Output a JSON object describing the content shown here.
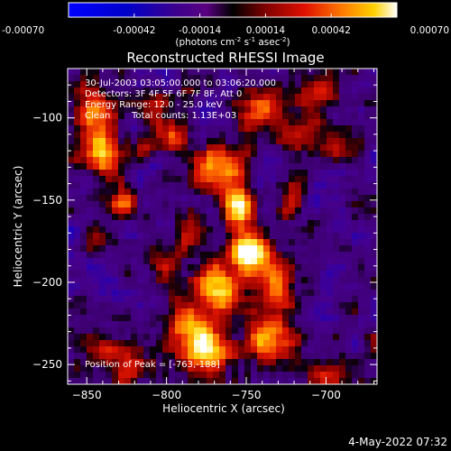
{
  "colorbar": {
    "tick_labels": [
      "-0.00070",
      "-0.00042",
      "-0.00014",
      "0.00014",
      "0.00042",
      "0.00070"
    ],
    "range": [
      -0.0007,
      0.0007
    ],
    "units_main": "(photons cm",
    "units_exp1": "-2",
    "units_mid1": " s",
    "units_exp2": "-1",
    "units_mid2": " asec",
    "units_exp3": "-2",
    "units_end": ")"
  },
  "chart_data": {
    "type": "heatmap",
    "title": "Reconstructed RHESSI Image",
    "xlabel": "Heliocentric X (arcsec)",
    "ylabel": "Heliocentric Y (arcsec)",
    "xlim": [
      -862,
      -668
    ],
    "ylim": [
      -262,
      -70
    ],
    "x_ticks": [
      -850,
      -800,
      -750,
      -700
    ],
    "y_ticks": [
      -100,
      -150,
      -200,
      -250
    ],
    "peak": [
      -763,
      -188
    ],
    "annotations": {
      "time_range": "30-Jul-2003 03:05:00.000 to 03:06:20.000",
      "detectors": "Detectors: 3F 4F 5F 6F 7F 8F, Att 0",
      "energy": "Energy Range: 12.0 - 25.0 keV",
      "clean": "Clean",
      "counts": "Total counts: 1.13E+03",
      "peak_label": "Position of Peak = [-763,-188]"
    },
    "sources": [
      {
        "x": -757,
        "y": -155,
        "amp": 0.95,
        "sx": 7,
        "sy": 9
      },
      {
        "x": -747,
        "y": -183,
        "amp": 0.98,
        "sx": 8,
        "sy": 9
      },
      {
        "x": -768,
        "y": -205,
        "amp": 0.75,
        "sx": 10,
        "sy": 12
      },
      {
        "x": -775,
        "y": -240,
        "amp": 0.82,
        "sx": 11,
        "sy": 9
      },
      {
        "x": -735,
        "y": -235,
        "amp": 0.72,
        "sx": 10,
        "sy": 12
      },
      {
        "x": -730,
        "y": -200,
        "amp": 0.55,
        "sx": 8,
        "sy": 10
      },
      {
        "x": -790,
        "y": -225,
        "amp": 0.55,
        "sx": 8,
        "sy": 10
      },
      {
        "x": -820,
        "y": -250,
        "amp": 0.45,
        "sx": 10,
        "sy": 8
      },
      {
        "x": -840,
        "y": -240,
        "amp": 0.38,
        "sx": 8,
        "sy": 8
      },
      {
        "x": -845,
        "y": -100,
        "amp": 0.55,
        "sx": 10,
        "sy": 14
      },
      {
        "x": -840,
        "y": -125,
        "amp": 0.45,
        "sx": 10,
        "sy": 10
      },
      {
        "x": -800,
        "y": -110,
        "amp": 0.42,
        "sx": 10,
        "sy": 8
      },
      {
        "x": -800,
        "y": -90,
        "amp": 0.35,
        "sx": 10,
        "sy": 7
      },
      {
        "x": -775,
        "y": -130,
        "amp": 0.5,
        "sx": 9,
        "sy": 8
      },
      {
        "x": -760,
        "y": -130,
        "amp": 0.4,
        "sx": 10,
        "sy": 8
      },
      {
        "x": -740,
        "y": -95,
        "amp": 0.45,
        "sx": 10,
        "sy": 8
      },
      {
        "x": -720,
        "y": -110,
        "amp": 0.42,
        "sx": 10,
        "sy": 8
      },
      {
        "x": -705,
        "y": -85,
        "amp": 0.4,
        "sx": 10,
        "sy": 8
      },
      {
        "x": -690,
        "y": -120,
        "amp": 0.35,
        "sx": 8,
        "sy": 8
      },
      {
        "x": -826,
        "y": -153,
        "amp": 0.55,
        "sx": 7,
        "sy": 6
      },
      {
        "x": -843,
        "y": -175,
        "amp": 0.3,
        "sx": 7,
        "sy": 7
      },
      {
        "x": -790,
        "y": -170,
        "amp": 0.3,
        "sx": 8,
        "sy": 8
      },
      {
        "x": -722,
        "y": -150,
        "amp": 0.32,
        "sx": 6,
        "sy": 8
      },
      {
        "x": -800,
        "y": -190,
        "amp": 0.35,
        "sx": 7,
        "sy": 8
      },
      {
        "x": -700,
        "y": -255,
        "amp": 0.35,
        "sx": 8,
        "sy": 6
      }
    ]
  },
  "footer": {
    "timestamp": "4-May-2022 07:32"
  }
}
